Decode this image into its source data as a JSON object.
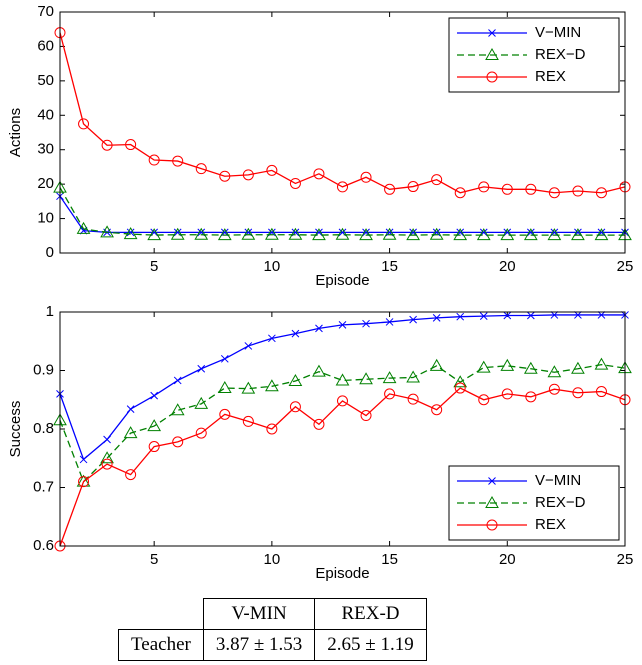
{
  "chart_data": [
    {
      "type": "line",
      "xlabel": "Episode",
      "ylabel": "Actions",
      "x": [
        1,
        2,
        3,
        4,
        5,
        6,
        7,
        8,
        9,
        10,
        11,
        12,
        13,
        14,
        15,
        16,
        17,
        18,
        19,
        20,
        21,
        22,
        23,
        24,
        25
      ],
      "xlim": [
        1,
        25
      ],
      "xticks": [
        5,
        10,
        15,
        20,
        25
      ],
      "ylim": [
        0,
        70
      ],
      "yticks": [
        0,
        10,
        20,
        30,
        40,
        50,
        60,
        70
      ],
      "legend": "upper-right",
      "series": [
        {
          "name": "V−MIN",
          "color": "#0000ff",
          "marker": "x",
          "linestyle": "solid",
          "values": [
            16.5,
            6.5,
            6,
            6,
            6,
            6,
            6,
            6,
            6,
            6,
            6,
            6,
            6,
            6,
            6,
            6,
            6,
            6,
            6,
            6,
            6,
            6,
            6,
            6,
            6
          ]
        },
        {
          "name": "REX−D",
          "color": "#008000",
          "marker": "triangle",
          "linestyle": "dashed",
          "values": [
            19,
            7,
            6,
            5.5,
            5.2,
            5.3,
            5.3,
            5.2,
            5.3,
            5.3,
            5.3,
            5.2,
            5.3,
            5.2,
            5.3,
            5.2,
            5.3,
            5.2,
            5.2,
            5.2,
            5.2,
            5.2,
            5.2,
            5.2,
            5.2
          ]
        },
        {
          "name": "REX",
          "color": "#ff0000",
          "marker": "circle",
          "linestyle": "solid",
          "values": [
            64,
            37.5,
            31.3,
            31.5,
            27,
            26.7,
            24.5,
            22.3,
            22.7,
            24,
            20.2,
            23,
            19.2,
            22,
            18.5,
            19.3,
            21.3,
            17.5,
            19.2,
            18.5,
            18.5,
            17.5,
            18,
            17.5,
            19.2
          ]
        }
      ]
    },
    {
      "type": "line",
      "xlabel": "Episode",
      "ylabel": "Success",
      "x": [
        1,
        2,
        3,
        4,
        5,
        6,
        7,
        8,
        9,
        10,
        11,
        12,
        13,
        14,
        15,
        16,
        17,
        18,
        19,
        20,
        21,
        22,
        23,
        24,
        25
      ],
      "xlim": [
        1,
        25
      ],
      "xticks": [
        5,
        10,
        15,
        20,
        25
      ],
      "ylim": [
        0.6,
        1
      ],
      "yticks": [
        0.6,
        0.7,
        0.8,
        0.9,
        1
      ],
      "legend": "lower-right",
      "series": [
        {
          "name": "V−MIN",
          "color": "#0000ff",
          "marker": "x",
          "linestyle": "solid",
          "values": [
            0.86,
            0.748,
            0.782,
            0.834,
            0.857,
            0.883,
            0.903,
            0.92,
            0.942,
            0.955,
            0.963,
            0.972,
            0.978,
            0.98,
            0.983,
            0.987,
            0.99,
            0.992,
            0.993,
            0.994,
            0.994,
            0.995,
            0.995,
            0.995,
            0.995
          ]
        },
        {
          "name": "REX−D",
          "color": "#008000",
          "marker": "triangle",
          "linestyle": "dashed",
          "values": [
            0.815,
            0.71,
            0.75,
            0.793,
            0.805,
            0.832,
            0.843,
            0.87,
            0.869,
            0.873,
            0.882,
            0.898,
            0.883,
            0.885,
            0.887,
            0.888,
            0.908,
            0.88,
            0.905,
            0.908,
            0.903,
            0.897,
            0.903,
            0.91,
            0.904
          ]
        },
        {
          "name": "REX",
          "color": "#ff0000",
          "marker": "circle",
          "linestyle": "solid",
          "values": [
            0.6,
            0.71,
            0.74,
            0.722,
            0.77,
            0.778,
            0.793,
            0.825,
            0.813,
            0.8,
            0.838,
            0.808,
            0.848,
            0.823,
            0.86,
            0.851,
            0.833,
            0.87,
            0.85,
            0.86,
            0.855,
            0.868,
            0.862,
            0.864,
            0.85
          ]
        }
      ]
    }
  ],
  "table": {
    "header": [
      "V-MIN",
      "REX-D"
    ],
    "rows": [
      [
        "Teacher",
        "3.87 ± 1.53",
        "2.65 ± 1.19"
      ]
    ]
  }
}
